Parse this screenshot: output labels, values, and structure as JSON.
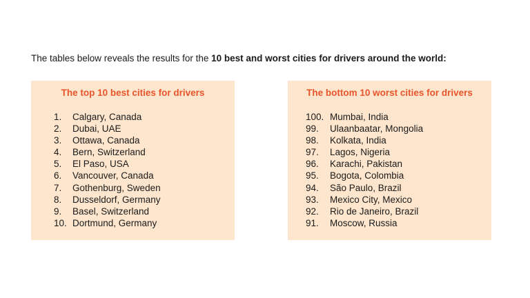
{
  "intro": {
    "text_plain": "The tables below reveals the results for the ",
    "text_bold": "10 best and worst cities for drivers around the world:"
  },
  "colors": {
    "panel_bg": "#fde6cd",
    "title_color": "#e8552c"
  },
  "best": {
    "title": "The top 10 best cities for drivers",
    "items": [
      {
        "rank": "1.",
        "city": "Calgary, Canada"
      },
      {
        "rank": "2.",
        "city": "Dubai, UAE"
      },
      {
        "rank": "3.",
        "city": "Ottawa, Canada"
      },
      {
        "rank": "4.",
        "city": "Bern, Switzerland"
      },
      {
        "rank": "5.",
        "city": "El Paso, USA"
      },
      {
        "rank": "6.",
        "city": "Vancouver, Canada"
      },
      {
        "rank": "7.",
        "city": "Gothenburg, Sweden"
      },
      {
        "rank": "8.",
        "city": "Dusseldorf, Germany"
      },
      {
        "rank": "9.",
        "city": "Basel, Switzerland"
      },
      {
        "rank": "10.",
        "city": "Dortmund, Germany"
      }
    ]
  },
  "worst": {
    "title": "The bottom 10 worst cities for drivers",
    "items": [
      {
        "rank": "100.",
        "city": "Mumbai, India"
      },
      {
        "rank": "99.",
        "city": "Ulaanbaatar, Mongolia"
      },
      {
        "rank": "98.",
        "city": "Kolkata, India"
      },
      {
        "rank": "97.",
        "city": "Lagos, Nigeria"
      },
      {
        "rank": "96.",
        "city": "Karachi, Pakistan"
      },
      {
        "rank": "95.",
        "city": "Bogota, Colombia"
      },
      {
        "rank": "94.",
        "city": "São Paulo, Brazil"
      },
      {
        "rank": "93.",
        "city": "Mexico City, Mexico"
      },
      {
        "rank": "92.",
        "city": "Rio de Janeiro, Brazil"
      },
      {
        "rank": "91.",
        "city": "Moscow, Russia"
      }
    ]
  }
}
